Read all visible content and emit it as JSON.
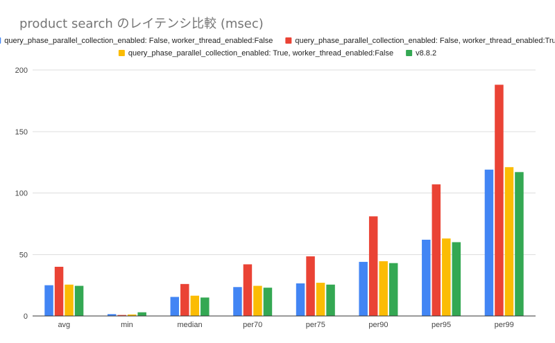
{
  "chart_data": {
    "type": "bar",
    "title": "product search のレイテンシ比較 (msec)",
    "xlabel": "",
    "ylabel": "",
    "categories": [
      "avg",
      "min",
      "median",
      "per70",
      "per75",
      "per90",
      "per95",
      "per99"
    ],
    "ylim": [
      0,
      200
    ],
    "yticks": [
      0,
      50,
      100,
      150,
      200
    ],
    "grid": true,
    "legend_position": "top",
    "series": [
      {
        "name": "query_phase_parallel_collection_enabled: False, worker_thread_enabled:False",
        "color": "#4285F4",
        "values": [
          25,
          1.5,
          15.5,
          23.5,
          26.5,
          44,
          62,
          119
        ]
      },
      {
        "name": "query_phase_parallel_collection_enabled: False, worker_thread_enabled:True",
        "color": "#EA4335",
        "values": [
          40,
          0.8,
          26,
          42,
          48.5,
          81,
          107,
          188
        ]
      },
      {
        "name": "query_phase_parallel_collection_enabled: True, worker_thread_enabled:False",
        "color": "#FBBC04",
        "values": [
          25.5,
          1.2,
          16.5,
          24.5,
          27,
          44.5,
          63,
          121
        ]
      },
      {
        "name": "v8.8.2",
        "color": "#34A853",
        "values": [
          24.5,
          3,
          15,
          23,
          25.5,
          43,
          60,
          117
        ]
      }
    ]
  }
}
